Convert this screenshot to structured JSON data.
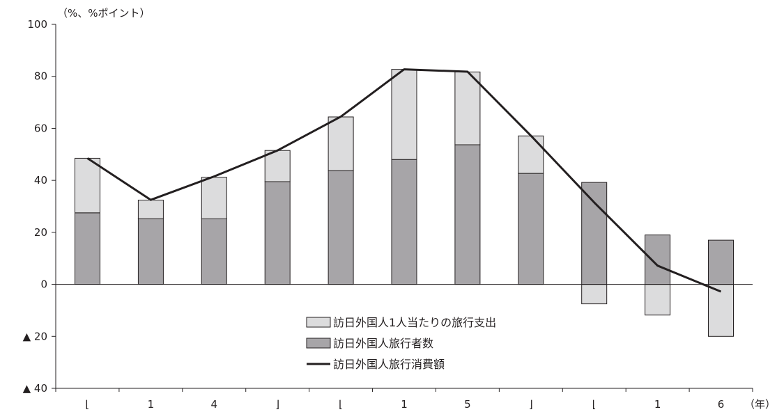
{
  "chart_data": {
    "type": "bar",
    "stacked": true,
    "y_unit_label": "（%、%ポイント）",
    "x_unit_label": "（年）",
    "ylim": [
      -40,
      100
    ],
    "yticks": [
      {
        "value": 100,
        "label": "100"
      },
      {
        "value": 80,
        "label": "80"
      },
      {
        "value": 60,
        "label": "60"
      },
      {
        "value": 40,
        "label": "40"
      },
      {
        "value": 20,
        "label": "20"
      },
      {
        "value": 0,
        "label": "0"
      },
      {
        "value": -20,
        "label": "▲ 20"
      },
      {
        "value": -40,
        "label": "▲ 40"
      }
    ],
    "categories": [
      "⌊",
      "1",
      "4",
      "⌋",
      "⌊",
      "1",
      "5",
      "⌋",
      "⌊",
      "1",
      "6"
    ],
    "series": [
      {
        "name": "訪日外国人旅行者数",
        "kind": "bar",
        "color": "#a7a5a8",
        "values": [
          27.5,
          25.2,
          25.2,
          39.5,
          43.7,
          48.0,
          53.7,
          42.7,
          39.2,
          19.0,
          17.0
        ]
      },
      {
        "name": "訪日外国人1人当たりの旅行支出",
        "kind": "bar",
        "color": "#dcdcdd",
        "values": [
          21.0,
          7.2,
          16.0,
          12.0,
          20.7,
          34.7,
          28.0,
          14.4,
          -7.5,
          -11.8,
          -20.0
        ]
      },
      {
        "name": "訪日外国人旅行消費額",
        "kind": "line",
        "color": "#231f20",
        "values": [
          48.5,
          32.5,
          41.5,
          51.5,
          64.5,
          82.7,
          81.8,
          57.2,
          31.5,
          7.2,
          -2.8
        ]
      }
    ],
    "legend": {
      "position": "lower-center",
      "entries": [
        {
          "name": "訪日外国人1人当たりの旅行支出",
          "marker": "box",
          "color": "#dcdcdd"
        },
        {
          "name": "訪日外国人旅行者数",
          "marker": "box",
          "color": "#a7a5a8"
        },
        {
          "name": "訪日外国人旅行消費額",
          "marker": "line",
          "color": "#231f20"
        }
      ]
    },
    "grid": false
  }
}
